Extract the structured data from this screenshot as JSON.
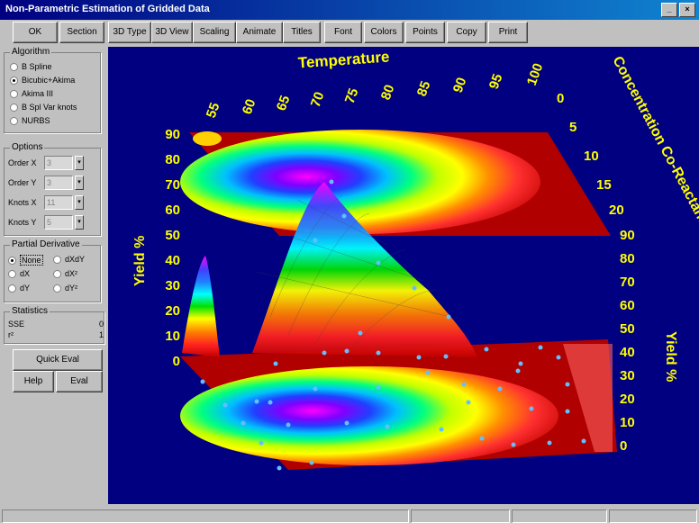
{
  "window": {
    "title": "Non-Parametric Estimation of Gridded Data"
  },
  "toolbar": {
    "ok": "OK",
    "section": "Section",
    "type3d": "3D Type",
    "view3d": "3D View",
    "scaling": "Scaling",
    "animate": "Animate",
    "titles": "Titles",
    "font": "Font",
    "colors": "Colors",
    "points": "Points",
    "copy": "Copy",
    "print": "Print"
  },
  "algorithm": {
    "legend": "Algorithm",
    "options": [
      "B Spline",
      "Bicubic+Akima",
      "Akima III",
      "B Spl Var knots",
      "NURBS"
    ],
    "selected_index": 1
  },
  "options": {
    "legend": "Options",
    "rows": [
      {
        "label": "Order X",
        "value": "3"
      },
      {
        "label": "Order Y",
        "value": "3"
      },
      {
        "label": "Knots X",
        "value": "11"
      },
      {
        "label": "Knots Y",
        "value": "5"
      }
    ]
  },
  "derivative": {
    "legend": "Partial Derivative",
    "options": [
      "None",
      "dXdY",
      "dX",
      "dX²",
      "dY",
      "dY²"
    ],
    "selected_index": 0
  },
  "statistics": {
    "legend": "Statistics",
    "sse_label": "SSE",
    "sse_value": "0",
    "r2_label": "r²",
    "r2_value": "1"
  },
  "buttons": {
    "quick_eval": "Quick Eval",
    "help": "Help",
    "eval": "Eval"
  },
  "plot": {
    "x_axis_title": "Temperature",
    "y_axis_title": "Concentration Co-Reactant",
    "z_axis_title": "Yield %",
    "z_axis_title_right": "Yield %",
    "x_ticks": [
      "55",
      "60",
      "65",
      "70",
      "75",
      "80",
      "85",
      "90",
      "95",
      "100"
    ],
    "y_ticks": [
      "0",
      "5",
      "10",
      "15",
      "20"
    ],
    "z_ticks": [
      "0",
      "10",
      "20",
      "30",
      "40",
      "50",
      "60",
      "70",
      "80",
      "90"
    ],
    "label_color": "#ffff00",
    "background_color": "#000080",
    "floor_color": "#b00000"
  }
}
